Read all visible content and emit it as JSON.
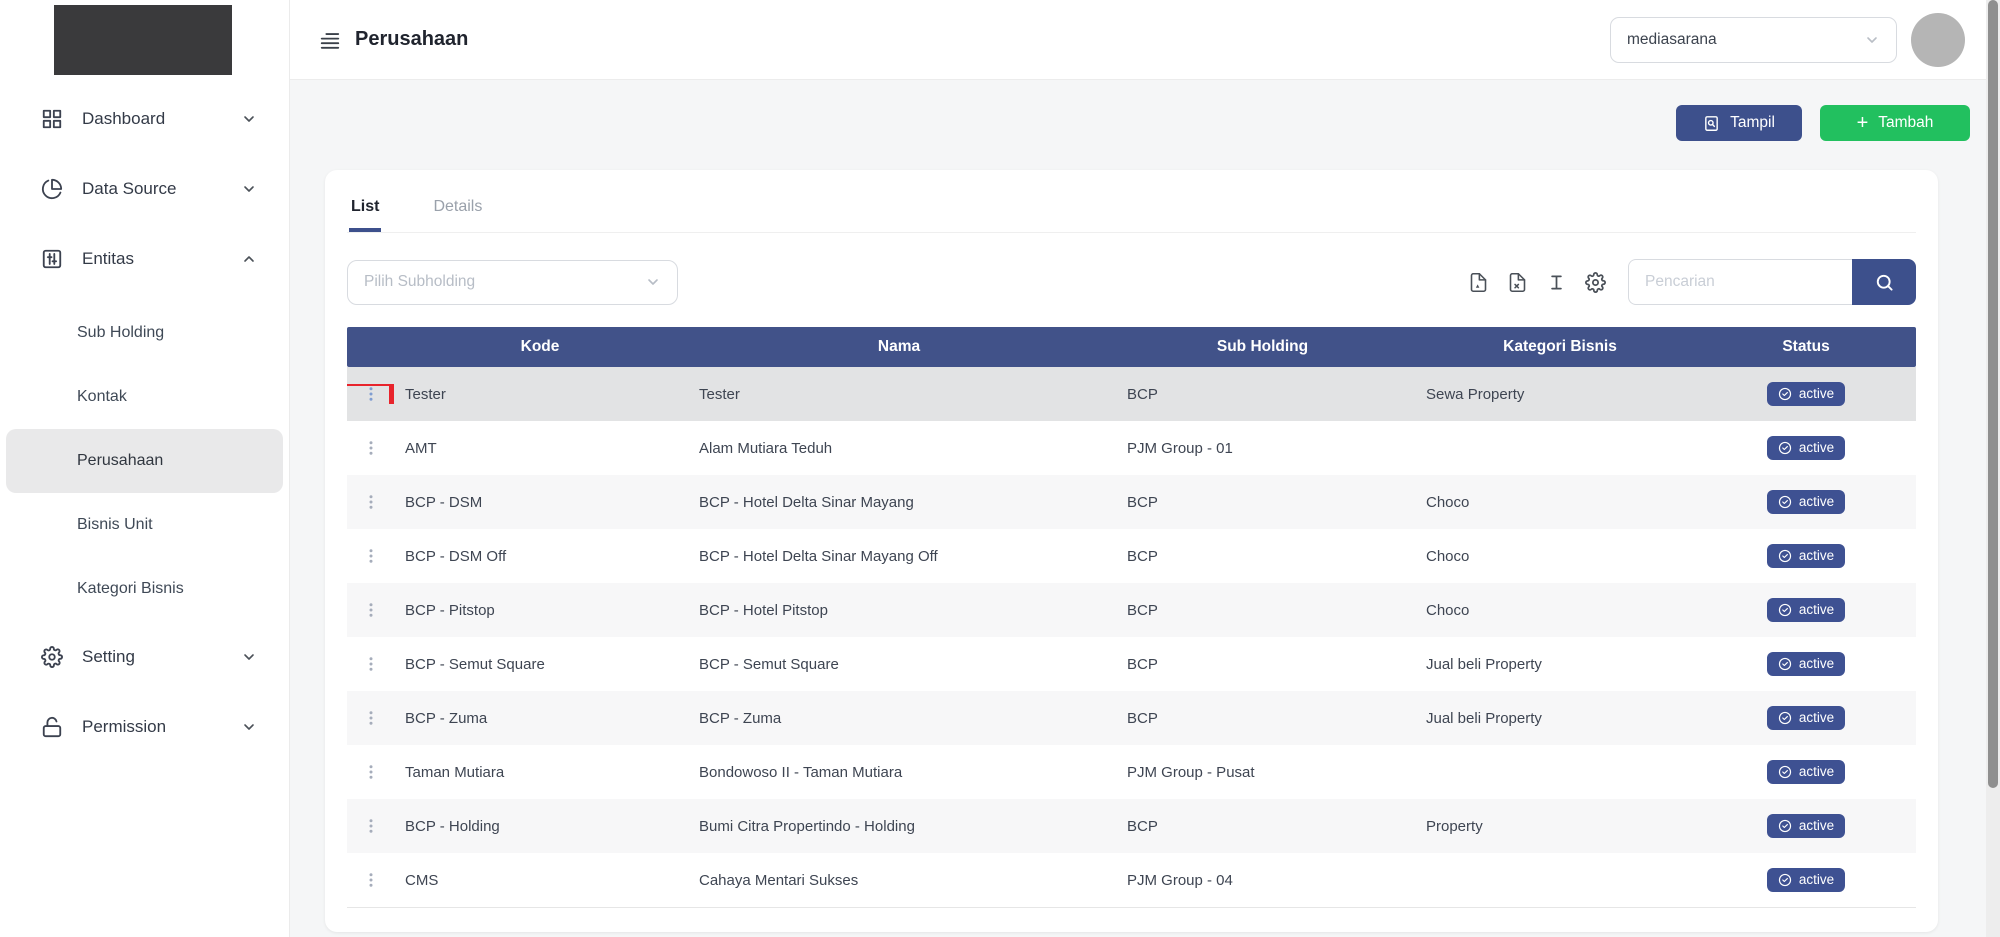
{
  "sidebar": {
    "items": [
      {
        "label": "Dashboard",
        "icon": "dashboard-grid-icon",
        "state": "collapsed"
      },
      {
        "label": "Data Source",
        "icon": "pie-chart-icon",
        "state": "collapsed"
      },
      {
        "label": "Entitas",
        "icon": "sliders-icon",
        "state": "expanded"
      },
      {
        "label": "Setting",
        "icon": "gear-icon",
        "state": "collapsed"
      },
      {
        "label": "Permission",
        "icon": "unlock-icon",
        "state": "collapsed"
      }
    ],
    "entitas_children": [
      {
        "label": "Sub Holding",
        "active": false
      },
      {
        "label": "Kontak",
        "active": false
      },
      {
        "label": "Perusahaan",
        "active": true
      },
      {
        "label": "Bisnis Unit",
        "active": false
      },
      {
        "label": "Kategori Bisnis",
        "active": false
      }
    ]
  },
  "header": {
    "page_title": "Perusahaan",
    "workspace_selector": {
      "value": "mediasarana"
    }
  },
  "actions": {
    "tampil_label": "Tampil",
    "tambah_label": "Tambah"
  },
  "panel": {
    "tabs": [
      {
        "label": "List",
        "active": true
      },
      {
        "label": "Details",
        "active": false
      }
    ],
    "subholding_filter": {
      "placeholder": "Pilih Subholding",
      "value": ""
    },
    "search": {
      "placeholder": "Pencarian",
      "value": ""
    },
    "tools": [
      "export-pdf-icon",
      "export-excel-icon",
      "row-height-icon",
      "table-settings-icon"
    ]
  },
  "table": {
    "columns": [
      "Kode",
      "Nama",
      "Sub Holding",
      "Kategori Bisnis",
      "Status"
    ],
    "rows": [
      {
        "kode": "Tester",
        "nama": "Tester",
        "sub_holding": "BCP",
        "kategori_bisnis": "Sewa Property",
        "status": "active",
        "selected": true,
        "annotated": true
      },
      {
        "kode": "AMT",
        "nama": "Alam Mutiara Teduh",
        "sub_holding": "PJM Group - 01",
        "kategori_bisnis": "",
        "status": "active",
        "selected": false,
        "annotated": false
      },
      {
        "kode": "BCP - DSM",
        "nama": "BCP - Hotel Delta Sinar Mayang",
        "sub_holding": "BCP",
        "kategori_bisnis": "Choco",
        "status": "active",
        "selected": false,
        "annotated": false
      },
      {
        "kode": "BCP - DSM Off",
        "nama": "BCP - Hotel Delta Sinar Mayang Off",
        "sub_holding": "BCP",
        "kategori_bisnis": "Choco",
        "status": "active",
        "selected": false,
        "annotated": false
      },
      {
        "kode": "BCP - Pitstop",
        "nama": "BCP - Hotel Pitstop",
        "sub_holding": "BCP",
        "kategori_bisnis": "Choco",
        "status": "active",
        "selected": false,
        "annotated": false
      },
      {
        "kode": "BCP - Semut Square",
        "nama": "BCP - Semut Square",
        "sub_holding": "BCP",
        "kategori_bisnis": "Jual beli Property",
        "status": "active",
        "selected": false,
        "annotated": false
      },
      {
        "kode": "BCP - Zuma",
        "nama": "BCP - Zuma",
        "sub_holding": "BCP",
        "kategori_bisnis": "Jual beli Property",
        "status": "active",
        "selected": false,
        "annotated": false
      },
      {
        "kode": "Taman Mutiara",
        "nama": "Bondowoso II - Taman Mutiara",
        "sub_holding": "PJM Group - Pusat",
        "kategori_bisnis": "",
        "status": "active",
        "selected": false,
        "annotated": false
      },
      {
        "kode": "BCP - Holding",
        "nama": "Bumi Citra Propertindo - Holding",
        "sub_holding": "BCP",
        "kategori_bisnis": "Property",
        "status": "active",
        "selected": false,
        "annotated": false
      },
      {
        "kode": "CMS",
        "nama": "Cahaya Mentari Sukses",
        "sub_holding": "PJM Group - 04",
        "kategori_bisnis": "",
        "status": "active",
        "selected": false,
        "annotated": false
      }
    ]
  },
  "colors": {
    "primary": "#3d508c",
    "success": "#22c05f",
    "annotation_red": "#e8242c",
    "selected_row": "#e2e3e4",
    "table_header": "#415289"
  }
}
